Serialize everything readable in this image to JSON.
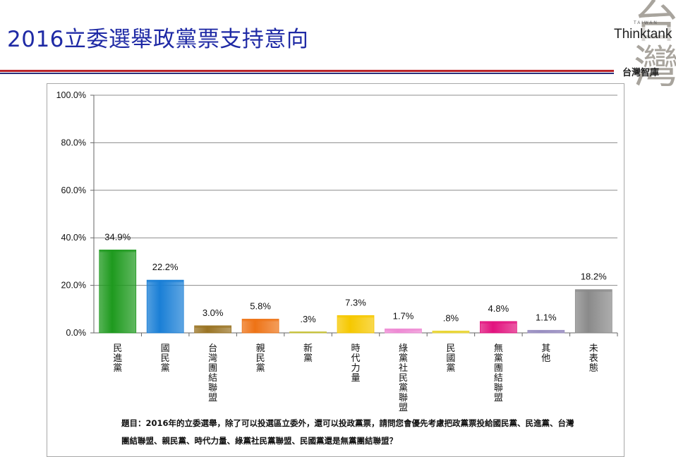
{
  "slide": {
    "title": "2016立委選舉政黨票支持意向"
  },
  "logo": {
    "latin": "Thinktank",
    "small": "TAIWAN",
    "chinese": "台灣智庫",
    "brush": "台灣"
  },
  "note": {
    "text": "題目：2016年的立委選舉，除了可以投選區立委外，還可以投政黨票，請問您會優先考慮把政黨票投給國民黨、民進黨、台灣團結聯盟、親民黨、時代力量、綠黨社民黨聯盟、民國黨還是無黨團結聯盟？"
  },
  "chart_data": {
    "type": "bar",
    "categories": [
      "民進黨",
      "國民黨",
      "台灣團結聯盟",
      "親民黨",
      "新黨",
      "時代力量",
      "綠黨社民黨聯盟",
      "民國黨",
      "無黨團結聯盟",
      "其他",
      "未表態"
    ],
    "values": [
      34.9,
      22.2,
      3.0,
      5.8,
      0.3,
      7.3,
      1.7,
      0.8,
      4.8,
      1.1,
      18.2
    ],
    "value_labels": [
      "34.9%",
      "22.2%",
      "3.0%",
      "5.8%",
      ".3%",
      "7.3%",
      "1.7%",
      ".8%",
      "4.8%",
      "1.1%",
      "18.2%"
    ],
    "colors": [
      "#1e9a1e",
      "#1a7fd6",
      "#9a7424",
      "#ee7316",
      "#c7c235",
      "#f6c800",
      "#ee8ad4",
      "#e9d534",
      "#e2127e",
      "#9a8fc2",
      "#8a8a8a"
    ],
    "yticks": [
      "0.0%",
      "20.0%",
      "40.0%",
      "60.0%",
      "80.0%",
      "100.0%"
    ],
    "ylim": [
      0,
      100
    ],
    "grid": true,
    "legend": "none",
    "title": "",
    "xlabel": "",
    "ylabel": ""
  }
}
